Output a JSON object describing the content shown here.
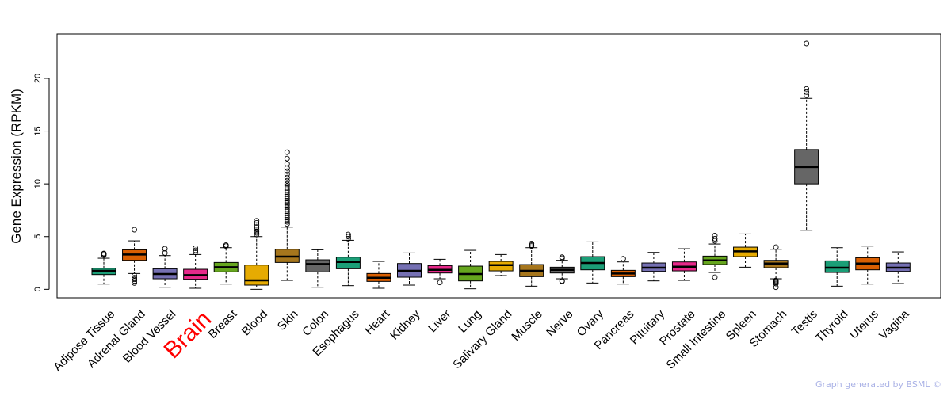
{
  "chart_data": {
    "type": "boxplot",
    "ylabel": "Gene Expression (RPKM)",
    "yticks": [
      0,
      5,
      10,
      15,
      20
    ],
    "ylim": [
      -0.8,
      24.2
    ],
    "highlight": {
      "category": "Brain",
      "color": "#ff0000"
    },
    "categories": [
      {
        "name": "Adipose Tissue",
        "color": "#1b9e77",
        "q1": 1.4,
        "median": 1.75,
        "q3": 2.0,
        "whisker_low": 0.5,
        "whisker_high": 2.95,
        "outliers": [
          3.25,
          3.35,
          3.4
        ]
      },
      {
        "name": "Adrenal Gland",
        "color": "#d95f02",
        "q1": 2.75,
        "median": 3.3,
        "q3": 3.75,
        "whisker_low": 1.5,
        "whisker_high": 4.6,
        "outliers": [
          1.3,
          1.1,
          0.95,
          0.8,
          0.6,
          5.65
        ]
      },
      {
        "name": "Blood Vessel",
        "color": "#7570b3",
        "q1": 1.0,
        "median": 1.45,
        "q3": 1.95,
        "whisker_low": 0.2,
        "whisker_high": 3.2,
        "outliers": [
          3.45,
          3.85
        ]
      },
      {
        "name": "Brain",
        "color": "#e7298a",
        "q1": 0.95,
        "median": 1.35,
        "q3": 1.9,
        "whisker_low": 0.1,
        "whisker_high": 3.3,
        "outliers": [
          3.5,
          3.7,
          3.9
        ]
      },
      {
        "name": "Breast",
        "color": "#66a61e",
        "q1": 1.65,
        "median": 2.1,
        "q3": 2.55,
        "whisker_low": 0.5,
        "whisker_high": 3.95,
        "outliers": [
          4.1,
          4.2
        ]
      },
      {
        "name": "Blood",
        "color": "#e6ab02",
        "q1": 0.4,
        "median": 0.85,
        "q3": 2.3,
        "whisker_low": 0.0,
        "whisker_high": 5.0,
        "outliers": [
          5.2,
          5.35,
          5.5,
          5.7,
          5.9,
          6.1,
          6.3,
          6.5
        ]
      },
      {
        "name": "Skin",
        "color": "#a6761d",
        "q1": 2.55,
        "median": 3.1,
        "q3": 3.8,
        "whisker_low": 0.85,
        "whisker_high": 5.9,
        "outliers": [
          6.2,
          6.4,
          6.6,
          6.8,
          7.0,
          7.2,
          7.4,
          7.6,
          7.8,
          8.0,
          8.2,
          8.4,
          8.6,
          8.8,
          9.0,
          9.2,
          9.4,
          9.6,
          9.8,
          10.0,
          10.3,
          10.6,
          10.9,
          11.2,
          11.5,
          11.9,
          12.4,
          13.0
        ]
      },
      {
        "name": "Colon",
        "color": "#666666",
        "q1": 1.65,
        "median": 2.4,
        "q3": 2.8,
        "whisker_low": 0.2,
        "whisker_high": 3.75,
        "outliers": []
      },
      {
        "name": "Esophagus",
        "color": "#1b9e77",
        "q1": 1.95,
        "median": 2.6,
        "q3": 3.05,
        "whisker_low": 0.35,
        "whisker_high": 4.65,
        "outliers": [
          4.8,
          5.0,
          5.2
        ]
      },
      {
        "name": "Heart",
        "color": "#d95f02",
        "q1": 0.75,
        "median": 1.1,
        "q3": 1.5,
        "whisker_low": 0.1,
        "whisker_high": 2.65,
        "outliers": []
      },
      {
        "name": "Kidney",
        "color": "#7570b3",
        "q1": 1.15,
        "median": 1.75,
        "q3": 2.45,
        "whisker_low": 0.4,
        "whisker_high": 3.45,
        "outliers": []
      },
      {
        "name": "Liver",
        "color": "#e7298a",
        "q1": 1.55,
        "median": 1.85,
        "q3": 2.25,
        "whisker_low": 1.0,
        "whisker_high": 2.85,
        "outliers": [
          0.65
        ]
      },
      {
        "name": "Lung",
        "color": "#66a61e",
        "q1": 0.8,
        "median": 1.45,
        "q3": 2.2,
        "whisker_low": 0.05,
        "whisker_high": 3.7,
        "outliers": []
      },
      {
        "name": "Salivary Gland",
        "color": "#e6ab02",
        "q1": 1.75,
        "median": 2.3,
        "q3": 2.65,
        "whisker_low": 1.3,
        "whisker_high": 3.3,
        "outliers": []
      },
      {
        "name": "Muscle",
        "color": "#a6761d",
        "q1": 1.2,
        "median": 1.75,
        "q3": 2.35,
        "whisker_low": 0.3,
        "whisker_high": 3.95,
        "outliers": [
          4.1,
          4.2,
          4.35
        ]
      },
      {
        "name": "Nerve",
        "color": "#666666",
        "q1": 1.55,
        "median": 1.85,
        "q3": 2.1,
        "whisker_low": 1.0,
        "whisker_high": 2.75,
        "outliers": [
          2.95,
          3.05,
          0.8,
          0.75
        ]
      },
      {
        "name": "Ovary",
        "color": "#1b9e77",
        "q1": 1.85,
        "median": 2.5,
        "q3": 3.1,
        "whisker_low": 0.6,
        "whisker_high": 4.5,
        "outliers": []
      },
      {
        "name": "Pancreas",
        "color": "#d95f02",
        "q1": 1.2,
        "median": 1.5,
        "q3": 1.8,
        "whisker_low": 0.5,
        "whisker_high": 2.6,
        "outliers": [
          2.9
        ]
      },
      {
        "name": "Pituitary",
        "color": "#7570b3",
        "q1": 1.7,
        "median": 2.05,
        "q3": 2.5,
        "whisker_low": 0.8,
        "whisker_high": 3.5,
        "outliers": []
      },
      {
        "name": "Prostate",
        "color": "#e7298a",
        "q1": 1.75,
        "median": 2.15,
        "q3": 2.6,
        "whisker_low": 0.85,
        "whisker_high": 3.85,
        "outliers": []
      },
      {
        "name": "Small Intestine",
        "color": "#66a61e",
        "q1": 2.35,
        "median": 2.75,
        "q3": 3.15,
        "whisker_low": 1.6,
        "whisker_high": 4.3,
        "outliers": [
          4.6,
          4.8,
          5.1,
          1.15
        ]
      },
      {
        "name": "Spleen",
        "color": "#e6ab02",
        "q1": 3.1,
        "median": 3.6,
        "q3": 4.0,
        "whisker_low": 2.1,
        "whisker_high": 5.25,
        "outliers": []
      },
      {
        "name": "Stomach",
        "color": "#a6761d",
        "q1": 2.05,
        "median": 2.45,
        "q3": 2.75,
        "whisker_low": 1.0,
        "whisker_high": 3.8,
        "outliers": [
          4.0,
          0.85,
          0.75,
          0.65,
          0.55,
          0.2
        ]
      },
      {
        "name": "Testis",
        "color": "#666666",
        "q1": 10.0,
        "median": 11.6,
        "q3": 13.25,
        "whisker_low": 5.6,
        "whisker_high": 18.1,
        "outliers": [
          18.4,
          18.7,
          19.0,
          23.3
        ]
      },
      {
        "name": "Thyroid",
        "color": "#1b9e77",
        "q1": 1.6,
        "median": 2.05,
        "q3": 2.7,
        "whisker_low": 0.3,
        "whisker_high": 3.95,
        "outliers": []
      },
      {
        "name": "Uterus",
        "color": "#d95f02",
        "q1": 1.85,
        "median": 2.45,
        "q3": 3.0,
        "whisker_low": 0.5,
        "whisker_high": 4.1,
        "outliers": []
      },
      {
        "name": "Vagina",
        "color": "#7570b3",
        "q1": 1.7,
        "median": 2.05,
        "q3": 2.5,
        "whisker_low": 0.55,
        "whisker_high": 3.55,
        "outliers": []
      }
    ]
  },
  "footer": {
    "text": "Graph generated by BSML ©"
  }
}
